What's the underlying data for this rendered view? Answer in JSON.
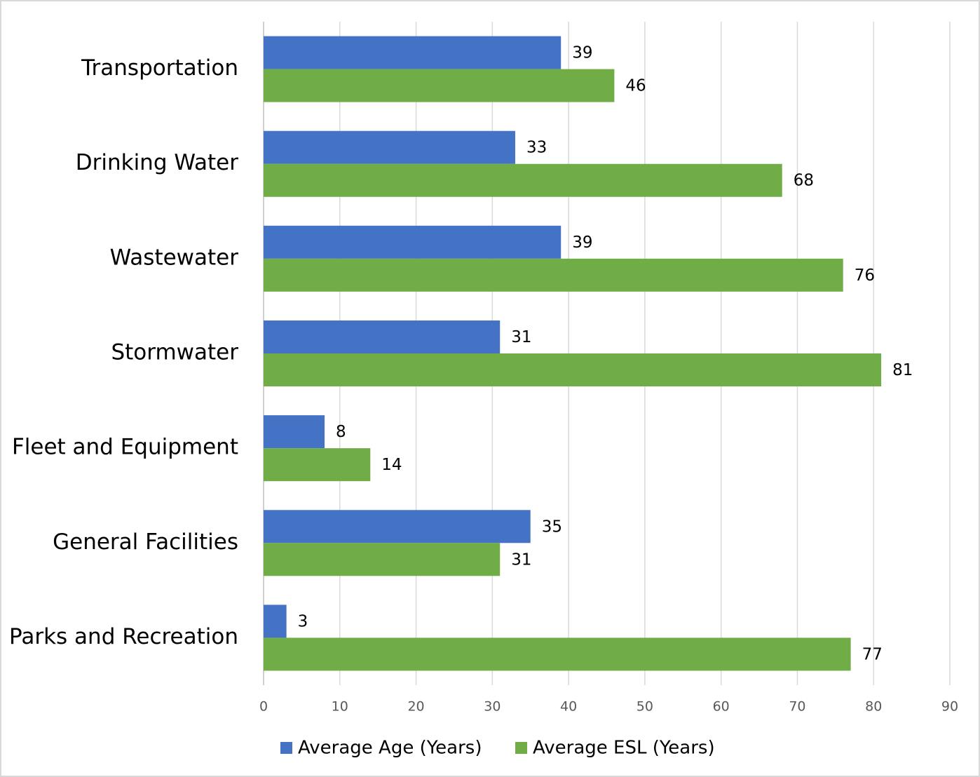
{
  "chart_data": {
    "type": "barh",
    "categories": [
      "Transportation",
      "Drinking Water",
      "Wastewater",
      "Stormwater",
      "Fleet and Equipment",
      "General Facilities",
      "Parks and Recreation"
    ],
    "series": [
      {
        "name": "Average Age (Years)",
        "color": "#4472c4",
        "values": [
          39,
          33,
          39,
          31,
          8,
          35,
          3
        ]
      },
      {
        "name": "Average ESL (Years)",
        "color": "#70ad47",
        "values": [
          46,
          68,
          76,
          81,
          14,
          31,
          77
        ]
      }
    ],
    "xlim": [
      0,
      90
    ],
    "xticks": [
      0,
      10,
      20,
      30,
      40,
      50,
      60,
      70,
      80,
      90
    ],
    "grid": true,
    "legend": "bottom"
  }
}
